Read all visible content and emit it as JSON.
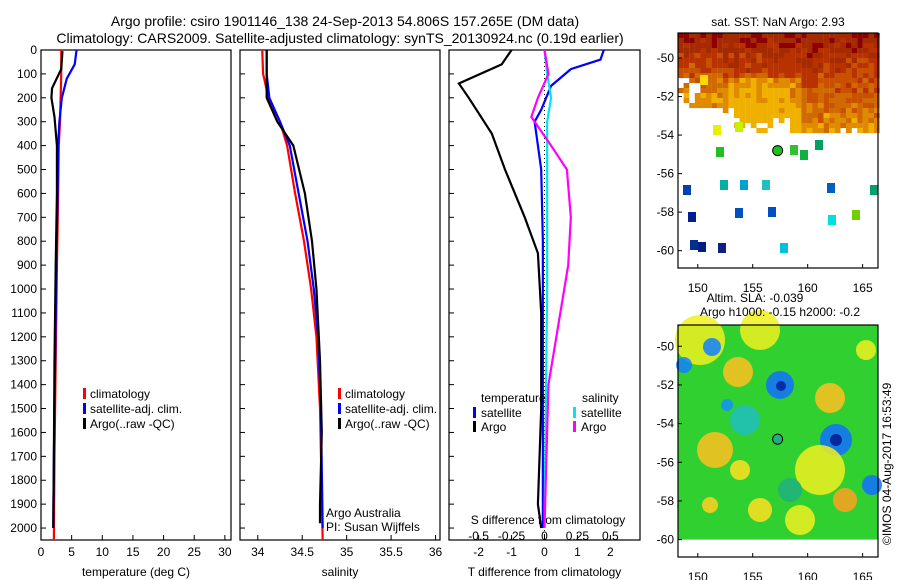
{
  "title": {
    "line1": "Argo profile: csiro 1901146_138 24-Sep-2013 54.806S 157.265E (DM data)",
    "line2": "Climatology: CARS2009. Satellite-adjusted climatology: synTS_20130924.nc (0.19d earlier)"
  },
  "colors": {
    "climatology": "#ff0000",
    "satellite": "#0000ff",
    "argo": "#000000",
    "sal_satellite": "#00e5ee",
    "sal_argo": "#ff00ff"
  },
  "chart_data": [
    {
      "type": "line",
      "xlabel": "temperature (deg C)",
      "ylabel": "depth",
      "xlim": [
        0,
        31
      ],
      "ylim": [
        2050,
        0
      ],
      "xticks": [
        "0",
        "5",
        "10",
        "15",
        "20",
        "25",
        "30"
      ],
      "yticks": [
        "0",
        "100",
        "200",
        "300",
        "400",
        "500",
        "600",
        "700",
        "800",
        "900",
        "1000",
        "1100",
        "1200",
        "1300",
        "1400",
        "1500",
        "1600",
        "1700",
        "1800",
        "1900",
        "2000"
      ],
      "legend": [
        "climatology",
        "satellite-adj. clim.",
        "Argo(..raw -QC)"
      ],
      "series": [
        {
          "name": "climatology",
          "color": "#ff0000",
          "points": [
            [
              3.3,
              0
            ],
            [
              3.3,
              100
            ],
            [
              3.2,
              200
            ],
            [
              3.1,
              300
            ],
            [
              2.9,
              400
            ],
            [
              2.8,
              600
            ],
            [
              2.6,
              900
            ],
            [
              2.4,
              1300
            ],
            [
              2.2,
              1700
            ],
            [
              2.1,
              2050
            ]
          ]
        },
        {
          "name": "satellite-adj. clim.",
          "color": "#0000ff",
          "points": [
            [
              5.8,
              0
            ],
            [
              5.5,
              60
            ],
            [
              4.2,
              120
            ],
            [
              3.4,
              200
            ],
            [
              3.0,
              300
            ],
            [
              2.8,
              400
            ],
            [
              2.7,
              600
            ],
            [
              2.5,
              900
            ],
            [
              2.3,
              1300
            ],
            [
              2.1,
              1700
            ],
            [
              2.0,
              2000
            ]
          ]
        },
        {
          "name": "Argo(..raw -QC)",
          "color": "#000000",
          "points": [
            [
              3.5,
              5
            ],
            [
              3.3,
              80
            ],
            [
              1.8,
              160
            ],
            [
              1.7,
              200
            ],
            [
              2.2,
              280
            ],
            [
              2.6,
              400
            ],
            [
              2.6,
              600
            ],
            [
              2.4,
              900
            ],
            [
              2.2,
              1300
            ],
            [
              2.1,
              1700
            ],
            [
              2.0,
              2000
            ]
          ]
        }
      ]
    },
    {
      "type": "line",
      "xlabel": "salinity",
      "xlim": [
        33.8,
        36.05
      ],
      "ylim": [
        2050,
        0
      ],
      "xticks": [
        "34",
        "34.5",
        "35",
        "35.5",
        "36"
      ],
      "legend": [
        "climatology",
        "satellite-adj. clim.",
        "Argo(..raw -QC)"
      ],
      "annotation": [
        "Argo Australia",
        "PI: Susan Wijffels"
      ],
      "series": [
        {
          "name": "climatology",
          "color": "#ff0000",
          "points": [
            [
              34.05,
              0
            ],
            [
              34.06,
              100
            ],
            [
              34.12,
              200
            ],
            [
              34.25,
              300
            ],
            [
              34.33,
              400
            ],
            [
              34.42,
              600
            ],
            [
              34.52,
              800
            ],
            [
              34.6,
              1000
            ],
            [
              34.66,
              1200
            ],
            [
              34.7,
              1500
            ],
            [
              34.73,
              2050
            ]
          ]
        },
        {
          "name": "satellite-adj. clim.",
          "color": "#0000ff",
          "points": [
            [
              34.1,
              0
            ],
            [
              34.1,
              100
            ],
            [
              34.13,
              200
            ],
            [
              34.25,
              300
            ],
            [
              34.36,
              400
            ],
            [
              34.46,
              600
            ],
            [
              34.56,
              800
            ],
            [
              34.63,
              1000
            ],
            [
              34.68,
              1200
            ],
            [
              34.71,
              1500
            ],
            [
              34.73,
              2000
            ]
          ]
        },
        {
          "name": "Argo(..raw -QC)",
          "color": "#000000",
          "points": [
            [
              34.1,
              0
            ],
            [
              34.1,
              200
            ],
            [
              34.22,
              300
            ],
            [
              34.4,
              400
            ],
            [
              34.53,
              600
            ],
            [
              34.61,
              800
            ],
            [
              34.66,
              1000
            ],
            [
              34.7,
              1300
            ],
            [
              34.72,
              1600
            ],
            [
              34.7,
              1900
            ],
            [
              34.7,
              1980
            ]
          ]
        }
      ]
    },
    {
      "type": "line",
      "xlabel": "T difference from climatology",
      "x2label": "S difference from climatology",
      "xlim": [
        -2.9,
        2.9
      ],
      "ylim": [
        2050,
        0
      ],
      "xticks": [
        "-2",
        "-1",
        "0",
        "1",
        "2"
      ],
      "x2ticks": [
        "-0.5",
        "-0.25",
        "0",
        "0.25",
        "0.5"
      ],
      "legend": {
        "temperature": "temperature",
        "salinity": "salinity",
        "t_sat": "satellite",
        "t_argo": "Argo",
        "s_sat": "satellite",
        "s_argo": "Argo"
      },
      "series": [
        {
          "name": "T satellite",
          "color": "#0000ff",
          "points": [
            [
              1.8,
              0
            ],
            [
              1.7,
              40
            ],
            [
              0.8,
              80
            ],
            [
              0.2,
              150
            ],
            [
              -0.1,
              250
            ],
            [
              -0.3,
              300
            ],
            [
              -0.1,
              500
            ],
            [
              -0.05,
              800
            ],
            [
              -0.05,
              1400
            ],
            [
              -0.05,
              2000
            ]
          ]
        },
        {
          "name": "T Argo",
          "color": "#000000",
          "points": [
            [
              -1.0,
              0
            ],
            [
              -1.3,
              60
            ],
            [
              -2.6,
              140
            ],
            [
              -2.3,
              200
            ],
            [
              -1.6,
              350
            ],
            [
              -1.2,
              500
            ],
            [
              -0.6,
              700
            ],
            [
              -0.2,
              850
            ],
            [
              -0.1,
              1100
            ],
            [
              -0.1,
              1500
            ],
            [
              -0.2,
              1900
            ],
            [
              -0.1,
              2000
            ]
          ]
        },
        {
          "name": "S satellite",
          "color": "#00e5ee",
          "points": [
            [
              0.0,
              0
            ],
            [
              0.02,
              100
            ],
            [
              0.05,
              200
            ],
            [
              0.02,
              300
            ],
            [
              0.02,
              600
            ],
            [
              0.02,
              1000
            ],
            [
              0.01,
              1500
            ],
            [
              0.0,
              2000
            ]
          ]
        },
        {
          "name": "S Argo",
          "color": "#ff00ff",
          "points": [
            [
              0.0,
              0
            ],
            [
              0.03,
              100
            ],
            [
              -0.05,
              200
            ],
            [
              -0.1,
              280
            ],
            [
              0.05,
              400
            ],
            [
              0.17,
              500
            ],
            [
              0.2,
              700
            ],
            [
              0.18,
              900
            ],
            [
              0.12,
              1100
            ],
            [
              0.03,
              1400
            ],
            [
              0.01,
              1800
            ],
            [
              0.0,
              2000
            ]
          ]
        }
      ]
    },
    {
      "type": "heatmap",
      "title": "sat. SST: NaN Argo: 2.93",
      "xlim": [
        148.2,
        166.4
      ],
      "ylim": [
        -60.9,
        -48.7
      ],
      "xticks": [
        "150",
        "155",
        "160",
        "165"
      ],
      "yticks": [
        "-50",
        "-52",
        "-54",
        "-56",
        "-58",
        "-60"
      ],
      "argo_position": [
        157.265,
        -54.806
      ]
    },
    {
      "type": "heatmap",
      "title": "Altim. SLA: -0.039",
      "subtitle": "Argo h1000: -0.15 h2000: -0.2",
      "xlim": [
        148.2,
        166.4
      ],
      "ylim": [
        -60.9,
        -48.9
      ],
      "xticks": [
        "150",
        "155",
        "160",
        "165"
      ],
      "yticks": [
        "-50",
        "-52",
        "-54",
        "-56",
        "-58",
        "-60"
      ],
      "argo_position": [
        157.265,
        -54.806
      ]
    }
  ],
  "footer": "©IMOS 04-Aug-2017 16:53:49"
}
